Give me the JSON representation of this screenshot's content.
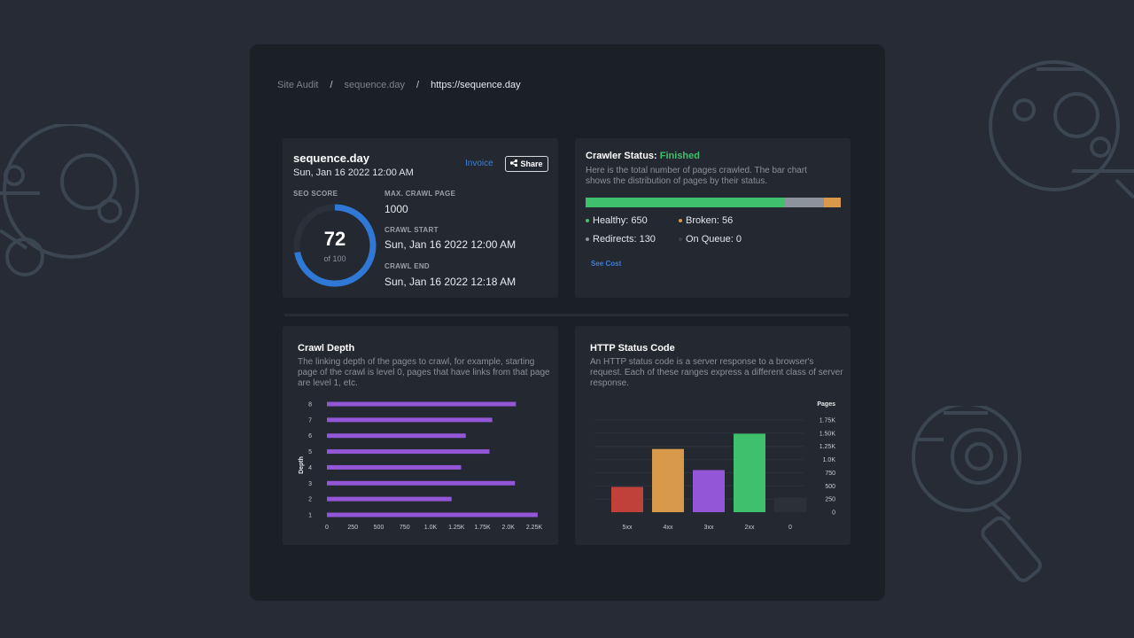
{
  "breadcrumb": {
    "items": [
      "Site Audit",
      "sequence.day",
      "https://sequence.day"
    ],
    "separator": "/"
  },
  "overview": {
    "site_name": "sequence.day",
    "date": "Sun, Jan 16 2022 12:00 AM",
    "invoice_label": "Invoice",
    "share_label": "Share",
    "seo_score_label": "SEO SCORE",
    "seo_score": "72",
    "seo_score_of": "of 100",
    "seo_score_value": 72,
    "seo_score_max": 100,
    "max_crawl_label": "MAX. CRAWL PAGE",
    "max_crawl_value": "1000",
    "crawl_start_label": "CRAWL START",
    "crawl_start_value": "Sun, Jan 16 2022 12:00 AM",
    "crawl_end_label": "CRAWL END",
    "crawl_end_value": "Sun, Jan 16 2022 12:18 AM"
  },
  "crawler": {
    "title_prefix": "Crawler Status:",
    "status": "Finished",
    "description": "Here is the total number of pages crawled. The bar chart shows the distribution of pages by their status.",
    "segments": [
      {
        "label": "Healthy: 650",
        "value": 650,
        "color": "#3fc06c"
      },
      {
        "label": "Redirects: 130",
        "value": 130,
        "color": "#8d939c"
      },
      {
        "label": "Broken: 56",
        "value": 56,
        "color": "#d8994a"
      },
      {
        "label": "On Queue: 0",
        "value": 0,
        "color": "#3a3f48"
      }
    ],
    "see_cost_label": "See Cost"
  },
  "crawl_depth": {
    "title": "Crawl Depth",
    "description": "The linking depth of the pages to crawl, for example, starting page of the crawl is level 0, pages that have links from that page are level 1, etc."
  },
  "http_status": {
    "title": "HTTP Status Code",
    "description": "An HTTP status code is a server response to a browser's request. Each of these ranges express a different class of server response."
  },
  "colors": {
    "accent": "#3d7fd9",
    "gauge": "#2f78d6",
    "depth_bar": "#9256d6",
    "healthy": "#3fc06c"
  },
  "chart_data": [
    {
      "type": "bar",
      "orientation": "horizontal",
      "ylabel": "Depth",
      "categories": [
        "1",
        "2",
        "3",
        "4",
        "5",
        "6",
        "7",
        "8"
      ],
      "values": [
        2230,
        1320,
        1990,
        1420,
        1720,
        1470,
        1750,
        2000
      ],
      "x_ticks": [
        "0",
        "250",
        "500",
        "750",
        "1.0K",
        "1.25K",
        "1.75K",
        "2.0K",
        "2.25K"
      ],
      "xlim": [
        0,
        2250
      ],
      "grid": false
    },
    {
      "type": "bar",
      "orientation": "vertical",
      "ylabel": "Pages",
      "categories": [
        "5xx",
        "4xx",
        "3xx",
        "2xx",
        "0"
      ],
      "values": [
        480,
        1200,
        800,
        1490,
        280
      ],
      "colors": [
        "#c0403a",
        "#d8994a",
        "#9256d6",
        "#3fc06c",
        "#2b3039"
      ],
      "y_ticks": [
        "0",
        "250",
        "500",
        "750",
        "1.0K",
        "1.25K",
        "1.50K",
        "1.75K"
      ],
      "ylim": [
        0,
        1750
      ],
      "grid": true
    }
  ]
}
